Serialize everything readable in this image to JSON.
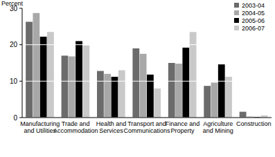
{
  "chart_data": {
    "type": "bar",
    "y_label": "Percent",
    "categories": [
      "Manufacturing and Utilities",
      "Trade and Accommodation",
      "Health and Services",
      "Transport and Communications",
      "Finance and Property",
      "Agriculture and Mining",
      "Construction"
    ],
    "series": [
      {
        "name": "2003-04",
        "color": "#6b6b6b",
        "values": [
          26.3,
          17.0,
          12.8,
          19.0,
          15.0,
          8.7,
          1.6
        ]
      },
      {
        "name": "2004-05",
        "color": "#a8a8a8",
        "values": [
          28.7,
          16.8,
          12.0,
          17.5,
          14.8,
          9.6,
          0.3
        ]
      },
      {
        "name": "2005-06",
        "color": "#000000",
        "values": [
          22.2,
          21.0,
          11.2,
          11.8,
          19.2,
          14.6,
          0.2
        ]
      },
      {
        "name": "2006-07",
        "color": "#c9c9c9",
        "values": [
          23.5,
          19.8,
          13.0,
          8.0,
          23.5,
          11.2,
          0.6
        ]
      }
    ],
    "ylim": [
      0,
      30
    ],
    "yticks": [
      0,
      10,
      20,
      30
    ],
    "grid": true,
    "legend": "top-right"
  }
}
